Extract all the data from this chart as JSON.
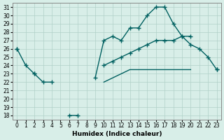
{
  "xlabel": "Humidex (Indice chaleur)",
  "background_color": "#d8eee8",
  "grid_color": "#b0d0c8",
  "line_color": "#006060",
  "xlim": [
    -0.5,
    23.5
  ],
  "ylim": [
    17.5,
    31.5
  ],
  "yticks": [
    18,
    19,
    20,
    21,
    22,
    23,
    24,
    25,
    26,
    27,
    28,
    29,
    30,
    31
  ],
  "xticks": [
    0,
    1,
    2,
    3,
    4,
    5,
    6,
    7,
    8,
    9,
    10,
    11,
    12,
    13,
    14,
    15,
    16,
    17,
    18,
    19,
    20,
    21,
    22,
    23
  ],
  "hours": [
    0,
    1,
    2,
    3,
    4,
    5,
    6,
    7,
    8,
    9,
    10,
    11,
    12,
    13,
    14,
    15,
    16,
    17,
    18,
    19,
    20,
    21,
    22,
    23
  ],
  "line1": [
    26,
    24,
    23,
    22,
    22,
    null,
    18,
    18,
    null,
    22.5,
    27,
    27.5,
    27,
    28.5,
    28.5,
    30,
    31,
    31,
    29,
    27.5,
    26.5,
    26,
    25,
    23.5
  ],
  "line2": [
    26,
    null,
    23,
    null,
    null,
    null,
    null,
    null,
    null,
    null,
    24,
    24.5,
    25,
    25.5,
    26,
    26.5,
    27,
    27,
    27,
    27.5,
    27.5,
    null,
    null,
    23.5
  ],
  "line3": [
    null,
    null,
    23,
    null,
    null,
    null,
    null,
    null,
    null,
    null,
    22,
    22.5,
    23,
    23.5,
    23.5,
    23.5,
    23.5,
    23.5,
    23.5,
    23.5,
    23.5,
    null,
    null,
    23.5
  ]
}
